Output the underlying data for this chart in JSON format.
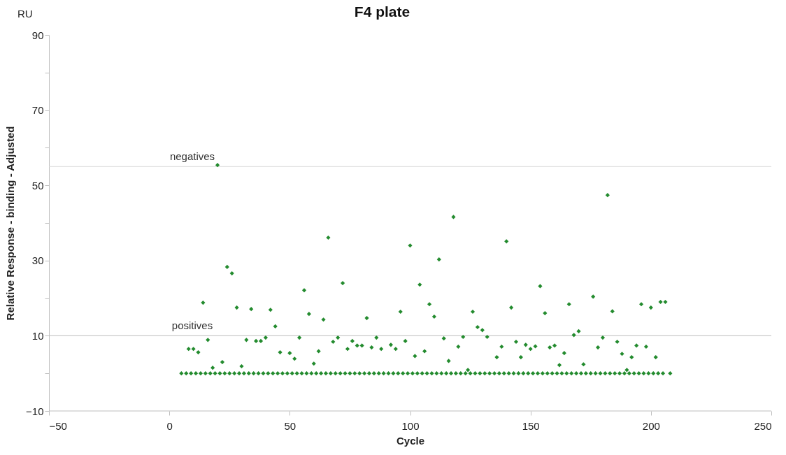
{
  "chart_data": {
    "type": "scatter",
    "title": "F4 plate",
    "xlabel": "Cycle",
    "ylabel": "Relative Response - binding - Adjusted",
    "annotations": [
      "RU"
    ],
    "xlim": [
      -50,
      250
    ],
    "xticks": [
      -50,
      0,
      50,
      100,
      150,
      200,
      250
    ],
    "ylim": [
      -10,
      90
    ],
    "yticks": [
      -10,
      {
        "value": 0,
        "label": null
      },
      10,
      {
        "value": 20,
        "label": null
      },
      30,
      {
        "value": 40,
        "label": null
      },
      50,
      {
        "value": 60,
        "label": null
      },
      70,
      {
        "value": 80,
        "label": null
      },
      90
    ],
    "grid": false,
    "marker": "diamond",
    "ref_lines": [
      {
        "axis": "y",
        "value": 55,
        "label": "negatives",
        "color": "#d9d9d9"
      },
      {
        "axis": "y",
        "value": 10,
        "label": "positives",
        "color": "#bfbfbf"
      }
    ],
    "series": [
      {
        "color": "#238b2e",
        "x": [
          5,
          7,
          9,
          11,
          13,
          15,
          17,
          19,
          21,
          23,
          25,
          27,
          29,
          31,
          33,
          35,
          37,
          39,
          41,
          43,
          45,
          47,
          49,
          51,
          53,
          55,
          57,
          59,
          61,
          63,
          65,
          67,
          69,
          71,
          73,
          75,
          77,
          79,
          81,
          83,
          85,
          87,
          89,
          91,
          93,
          95,
          97,
          99,
          101,
          103,
          105,
          107,
          109,
          111,
          113,
          115,
          117,
          119,
          121,
          123,
          125,
          127,
          129,
          131,
          133,
          135,
          137,
          139,
          141,
          143,
          145,
          147,
          149,
          151,
          153,
          155,
          157,
          159,
          161,
          163,
          165,
          167,
          169,
          171,
          173,
          175,
          177,
          179,
          181,
          183,
          185,
          187,
          189,
          191,
          193,
          195,
          197,
          199,
          201,
          203,
          205,
          208
        ],
        "values": [
          0,
          0,
          0,
          0,
          0,
          0,
          0,
          0,
          0,
          0,
          0,
          0,
          0,
          0,
          0,
          0,
          0,
          0,
          0,
          0,
          0,
          0,
          0,
          0,
          0,
          0,
          0,
          0,
          0,
          0,
          0,
          0,
          0,
          0,
          0,
          0,
          0,
          0,
          0,
          0,
          0,
          0,
          0,
          0,
          0,
          0,
          0,
          0,
          0,
          0,
          0,
          0,
          0,
          0,
          0,
          0,
          0,
          0,
          0,
          0,
          0,
          0,
          0,
          0,
          0,
          0,
          0,
          0,
          0,
          0,
          0,
          0,
          0,
          0,
          0,
          0,
          0,
          0,
          0,
          0,
          0,
          0,
          0,
          0,
          0,
          0,
          0,
          0,
          0,
          0,
          0,
          0,
          0,
          0,
          0,
          0,
          0,
          0,
          0,
          0,
          0,
          0
        ]
      },
      {
        "color": "#238b2e",
        "x": [
          8,
          10,
          12,
          14,
          16,
          18,
          20,
          22,
          24,
          26,
          28,
          30,
          32,
          34,
          36,
          38,
          40,
          42,
          44,
          46,
          50,
          52,
          54,
          56,
          58,
          60,
          62,
          64,
          66,
          68,
          70,
          72,
          74,
          76,
          78,
          80,
          82,
          84,
          86,
          88,
          92,
          94,
          96,
          98,
          100,
          102,
          104,
          106,
          108,
          110,
          112,
          114,
          116,
          118,
          120,
          122,
          124,
          126,
          128,
          130,
          132,
          136,
          138,
          140,
          142,
          144,
          146,
          148,
          150,
          152,
          154,
          156,
          158,
          160,
          162,
          164,
          166,
          168,
          170,
          172,
          176,
          178,
          180,
          182,
          184,
          186,
          188,
          190,
          192,
          194,
          196,
          198,
          200,
          202,
          204,
          206
        ],
        "values": [
          6.5,
          6.5,
          5.6,
          18.8,
          8.9,
          1.5,
          55.4,
          3,
          28.3,
          26.6,
          17.5,
          1.9,
          8.9,
          17.1,
          8.6,
          8.6,
          9.5,
          16.9,
          12.5,
          5.6,
          5.4,
          3.9,
          9.5,
          22.1,
          15.8,
          2.6,
          5.9,
          14.3,
          36.1,
          8.4,
          9.5,
          24,
          6.5,
          8.6,
          7.4,
          7.4,
          14.7,
          6.9,
          9.5,
          6.5,
          7.6,
          6.5,
          16.4,
          8.6,
          34,
          4.6,
          23.6,
          5.9,
          18.4,
          15.1,
          30.3,
          9.3,
          3.3,
          41.6,
          7.1,
          9.7,
          0.9,
          16.4,
          12.3,
          11.5,
          9.7,
          4.3,
          7.1,
          35.1,
          17.5,
          8.4,
          4.3,
          7.6,
          6.5,
          7.2,
          23.2,
          16,
          6.9,
          7.4,
          2.2,
          5.4,
          18.4,
          10.2,
          11.2,
          2.4,
          20.4,
          6.9,
          9.5,
          47.4,
          16.5,
          8.4,
          5.2,
          0.9,
          4.3,
          7.4,
          18.4,
          7.1,
          17.5,
          4.3,
          19,
          19
        ]
      }
    ]
  }
}
